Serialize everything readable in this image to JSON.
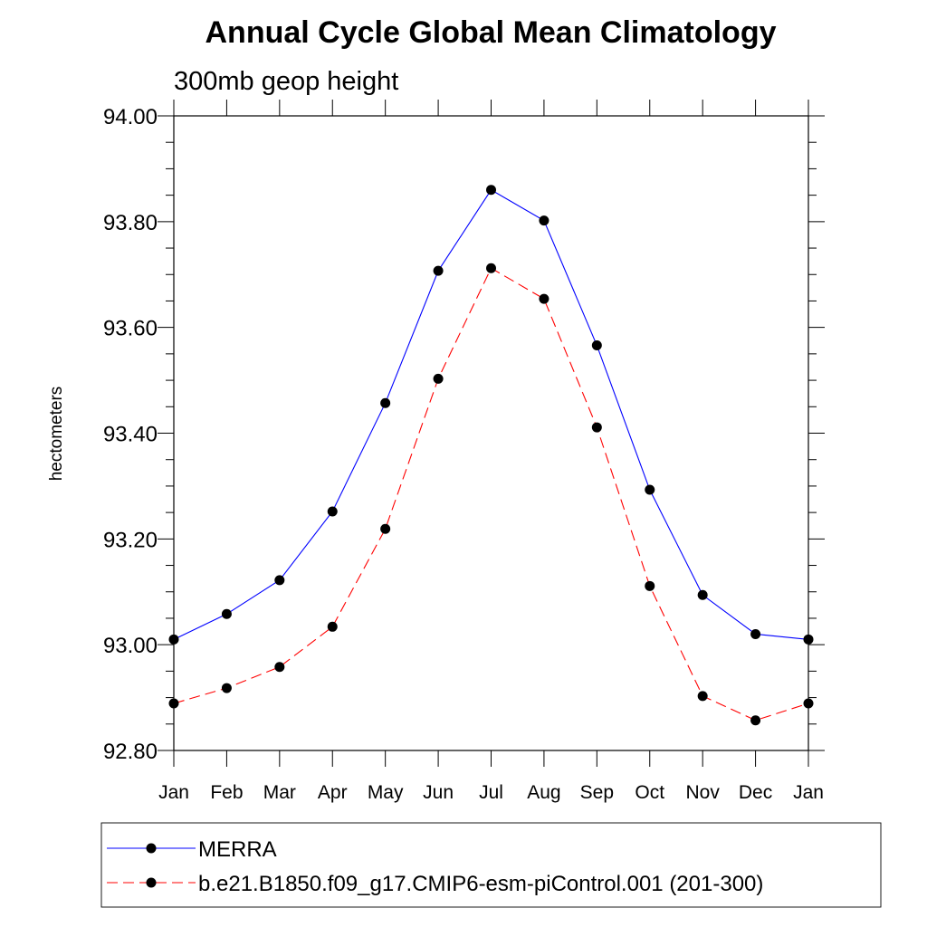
{
  "chart_data": {
    "type": "line",
    "title": "Annual Cycle Global Mean Climatology",
    "subtitle": "300mb geop height",
    "xlabel": "",
    "ylabel": "hectometers",
    "categories": [
      "Jan",
      "Feb",
      "Mar",
      "Apr",
      "May",
      "Jun",
      "Jul",
      "Aug",
      "Sep",
      "Oct",
      "Nov",
      "Dec",
      "Jan"
    ],
    "ylim": [
      92.8,
      94.0
    ],
    "yticks": [
      92.8,
      93.0,
      93.2,
      93.4,
      93.6,
      93.8,
      94.0
    ],
    "ytick_labels": [
      "92.80",
      "93.00",
      "93.20",
      "93.40",
      "93.60",
      "93.80",
      "94.00"
    ],
    "y_minor_step": 0.05,
    "grid": false,
    "legend_position": "bottom",
    "series": [
      {
        "name": "MERRA",
        "color": "#0000ff",
        "line_style": "solid",
        "marker": "filled-circle",
        "values": [
          93.01,
          93.058,
          93.122,
          93.252,
          93.457,
          93.707,
          93.86,
          93.802,
          93.566,
          93.293,
          93.094,
          93.02,
          93.01
        ]
      },
      {
        "name": "b.e21.B1850.f09_g17.CMIP6-esm-piControl.001 (201-300)",
        "color": "#ff0000",
        "line_style": "dashed",
        "marker": "filled-circle",
        "values": [
          92.889,
          92.918,
          92.958,
          93.034,
          93.219,
          93.503,
          93.712,
          93.654,
          93.411,
          93.111,
          92.903,
          92.857,
          92.889
        ]
      }
    ]
  }
}
